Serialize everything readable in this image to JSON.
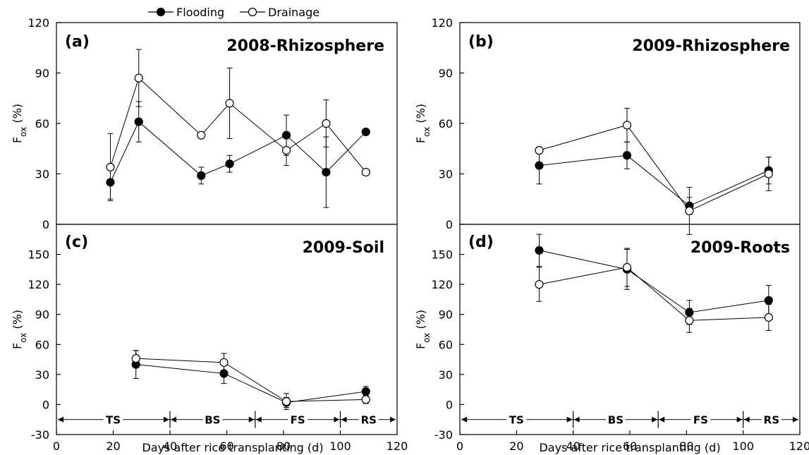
{
  "legend": [
    {
      "name": "Flooding",
      "marker": "filled"
    },
    {
      "name": "Drainage",
      "marker": "open"
    }
  ],
  "x_axis_label": "Days after rice transplanting (d)",
  "y_axis_label_main": "F",
  "y_axis_label_sub": "ox",
  "y_axis_label_unit": " (%)",
  "stage_labels": [
    "TS",
    "BS",
    "FS",
    "RS"
  ],
  "stage_boundaries": [
    40,
    70,
    100
  ],
  "x_ticks": [
    0,
    20,
    40,
    60,
    80,
    100,
    120
  ],
  "chart_data": [
    {
      "type": "line",
      "panel": "(a)",
      "title": "2008-Rhizosphere",
      "xlim": [
        0,
        120
      ],
      "ylim": [
        0,
        120
      ],
      "y_ticks": [
        0,
        30,
        60,
        90,
        120
      ],
      "series": [
        {
          "name": "Flooding",
          "x": [
            19,
            29,
            51,
            61,
            81,
            95,
            109
          ],
          "y": [
            25,
            61,
            29,
            36,
            53,
            31,
            55
          ],
          "err": [
            10,
            12,
            5,
            5,
            12,
            21,
            0
          ]
        },
        {
          "name": "Drainage",
          "x": [
            19,
            29,
            51,
            61,
            81,
            95,
            109
          ],
          "y": [
            34,
            87,
            53,
            72,
            44,
            60,
            31
          ],
          "err": [
            20,
            17,
            0,
            21,
            9,
            14,
            0
          ]
        }
      ]
    },
    {
      "type": "line",
      "panel": "(b)",
      "title": "2009-Rhizosphere",
      "xlim": [
        0,
        120
      ],
      "ylim": [
        0,
        120
      ],
      "y_ticks": [
        0,
        30,
        60,
        90,
        120
      ],
      "series": [
        {
          "name": "Flooding",
          "x": [
            28,
            59,
            81,
            109
          ],
          "y": [
            35,
            41,
            11,
            32
          ],
          "err": [
            11,
            8,
            5,
            8
          ]
        },
        {
          "name": "Drainage",
          "x": [
            28,
            59,
            81,
            109
          ],
          "y": [
            44,
            59,
            8,
            30
          ],
          "err": [
            2,
            10,
            14,
            10
          ]
        }
      ]
    },
    {
      "type": "line",
      "panel": "(c)",
      "title": "2009-Soil",
      "xlim": [
        0,
        120
      ],
      "ylim": [
        -30,
        180
      ],
      "y_ticks": [
        -30,
        0,
        30,
        60,
        90,
        120,
        150
      ],
      "series": [
        {
          "name": "Flooding",
          "x": [
            28,
            59,
            81,
            109
          ],
          "y": [
            40,
            31,
            2,
            13
          ],
          "err": [
            14,
            10,
            5,
            5
          ]
        },
        {
          "name": "Drainage",
          "x": [
            28,
            59,
            81,
            109
          ],
          "y": [
            46,
            42,
            3,
            5
          ],
          "err": [
            8,
            9,
            8,
            4
          ]
        }
      ]
    },
    {
      "type": "line",
      "panel": "(d)",
      "title": "2009-Roots",
      "xlim": [
        0,
        120
      ],
      "ylim": [
        -30,
        180
      ],
      "y_ticks": [
        -30,
        0,
        30,
        60,
        90,
        120,
        150
      ],
      "series": [
        {
          "name": "Flooding",
          "x": [
            28,
            59,
            81,
            109
          ],
          "y": [
            154,
            135,
            92,
            104
          ],
          "err": [
            16,
            20,
            12,
            15
          ]
        },
        {
          "name": "Drainage",
          "x": [
            28,
            59,
            81,
            109
          ],
          "y": [
            120,
            137,
            84,
            87
          ],
          "err": [
            17,
            19,
            12,
            13
          ]
        }
      ]
    }
  ]
}
